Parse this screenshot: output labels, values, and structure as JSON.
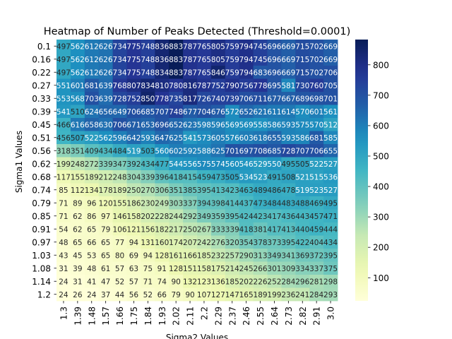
{
  "chart_data": {
    "type": "heatmap",
    "title": "Heatmap of Number of Peaks Detected (Threshold=0.0001)",
    "xlabel": "Sigma2 Values",
    "ylabel": "Sigma1 Values",
    "x_labels": [
      "1.3",
      "1.39",
      "1.48",
      "1.57",
      "1.66",
      "1.75",
      "1.84",
      "1.93",
      "2.02",
      "2.11",
      "2.2",
      "2.29",
      "2.37",
      "2.46",
      "2.55",
      "2.64",
      "2.73",
      "2.82",
      "2.91",
      "3.0"
    ],
    "y_labels": [
      "0.1",
      "0.16",
      "0.22",
      "0.27",
      "0.33",
      "0.39",
      "0.45",
      "0.51",
      "0.56",
      "0.62",
      "0.68",
      "0.74",
      "0.79",
      "0.85",
      "0.91",
      "0.97",
      "1.03",
      "1.08",
      "1.14",
      "1.2"
    ],
    "values": [
      [
        497,
        562,
        612,
        626,
        734,
        775,
        748,
        836,
        883,
        787,
        765,
        805,
        759,
        794,
        745,
        696,
        669,
        715,
        702,
        669
      ],
      [
        497,
        562,
        612,
        626,
        734,
        775,
        748,
        836,
        883,
        787,
        765,
        805,
        759,
        794,
        745,
        696,
        669,
        715,
        702,
        669
      ],
      [
        497,
        562,
        612,
        626,
        734,
        775,
        748,
        834,
        883,
        787,
        765,
        846,
        759,
        794,
        683,
        696,
        669,
        715,
        702,
        706
      ],
      [
        551,
        601,
        681,
        639,
        768,
        807,
        834,
        810,
        780,
        816,
        787,
        752,
        790,
        756,
        778,
        695,
        581,
        730,
        760,
        705
      ],
      [
        553,
        568,
        703,
        639,
        728,
        752,
        850,
        778,
        735,
        817,
        726,
        740,
        739,
        706,
        711,
        677,
        667,
        689,
        698,
        701
      ],
      [
        541,
        510,
        624,
        656,
        649,
        706,
        685,
        707,
        748,
        677,
        704,
        676,
        572,
        652,
        621,
        611,
        614,
        570,
        601,
        561
      ],
      [
        466,
        616,
        658,
        630,
        706,
        671,
        653,
        696,
        652,
        623,
        598,
        596,
        569,
        569,
        558,
        586,
        593,
        575,
        570,
        512
      ],
      [
        456,
        507,
        522,
        562,
        596,
        642,
        593,
        647,
        625,
        541,
        573,
        605,
        576,
        603,
        618,
        655,
        593,
        586,
        681,
        585
      ],
      [
        318,
        351,
        409,
        434,
        484,
        519,
        503,
        560,
        602,
        592,
        588,
        625,
        701,
        697,
        708,
        685,
        728,
        707,
        706,
        655
      ],
      [
        199,
        248,
        272,
        339,
        347,
        392,
        434,
        477,
        544,
        556,
        575,
        574,
        560,
        546,
        529,
        550,
        495,
        505,
        522,
        527
      ],
      [
        117,
        155,
        189,
        212,
        248,
        304,
        339,
        396,
        418,
        415,
        459,
        473,
        505,
        534,
        523,
        491,
        508,
        521,
        515,
        536
      ],
      [
        85,
        112,
        134,
        178,
        189,
        250,
        270,
        306,
        351,
        385,
        395,
        413,
        423,
        463,
        489,
        486,
        478,
        519,
        523,
        527
      ],
      [
        71,
        89,
        96,
        120,
        155,
        186,
        230,
        249,
        303,
        337,
        394,
        398,
        414,
        437,
        473,
        484,
        483,
        488,
        469,
        495
      ],
      [
        71,
        62,
        86,
        97,
        146,
        158,
        202,
        228,
        244,
        292,
        349,
        359,
        395,
        424,
        423,
        417,
        436,
        443,
        457,
        471
      ],
      [
        54,
        62,
        65,
        79,
        106,
        121,
        156,
        182,
        217,
        250,
        267,
        333,
        339,
        418,
        381,
        417,
        413,
        440,
        459,
        444
      ],
      [
        48,
        65,
        66,
        65,
        77,
        94,
        131,
        160,
        174,
        207,
        242,
        276,
        320,
        354,
        378,
        373,
        395,
        422,
        404,
        434
      ],
      [
        43,
        45,
        53,
        65,
        80,
        69,
        94,
        128,
        161,
        166,
        185,
        232,
        257,
        290,
        313,
        349,
        341,
        369,
        372,
        395
      ],
      [
        31,
        39,
        48,
        61,
        57,
        63,
        75,
        91,
        128,
        151,
        158,
        175,
        214,
        245,
        266,
        301,
        309,
        334,
        337,
        375
      ],
      [
        24,
        31,
        41,
        47,
        52,
        57,
        71,
        74,
        90,
        132,
        123,
        136,
        185,
        202,
        226,
        252,
        284,
        296,
        281,
        298
      ],
      [
        24,
        26,
        24,
        37,
        44,
        56,
        52,
        66,
        79,
        90,
        107,
        127,
        147,
        165,
        189,
        199,
        236,
        241,
        284,
        293
      ]
    ],
    "vmin": 24,
    "vmax": 883,
    "colormap": "YlGnBu",
    "colorbar_ticks": [
      "100",
      "200",
      "300",
      "400",
      "500",
      "600",
      "700",
      "800"
    ],
    "annotate_cells": true,
    "grid": false,
    "legend": "colorbar-right"
  }
}
